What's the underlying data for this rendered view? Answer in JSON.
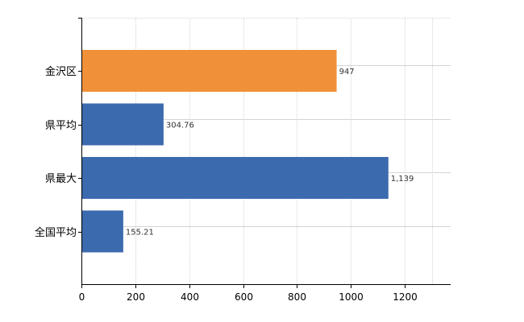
{
  "chart_data": {
    "type": "bar",
    "orientation": "horizontal",
    "categories": [
      "金沢区",
      "県平均",
      "県最大",
      "全国平均"
    ],
    "values": [
      947,
      304.76,
      1139,
      155.21
    ],
    "data_labels": [
      "947",
      "304.76",
      "1,139",
      "155.21"
    ],
    "bar_colors": [
      "#F0913A",
      "#3C6AAE",
      "#3C6AAE",
      "#3C6AAE"
    ],
    "title": "",
    "xlabel": "",
    "ylabel": "",
    "xlim": [
      0,
      1370
    ],
    "x_ticks": [
      0,
      200,
      400,
      600,
      800,
      1000,
      1200
    ],
    "grid": true,
    "legend": "none"
  }
}
